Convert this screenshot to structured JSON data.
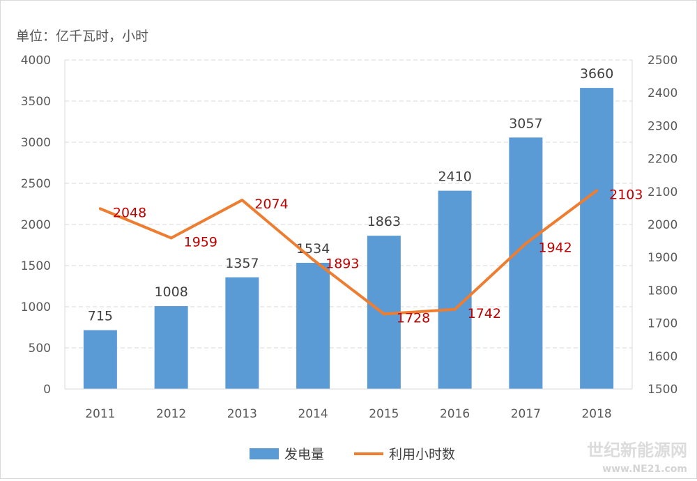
{
  "unit_label": "单位：亿千瓦时，小时",
  "watermark": {
    "title": "世纪新能源网",
    "url": "www.NE21.com"
  },
  "colors": {
    "bar": "#5b9bd5",
    "line": "#ed7d31",
    "line_label": "#c00000",
    "axis_text": "#595959",
    "grid": "#d9d9d9"
  },
  "chart_data": {
    "type": "bar",
    "categories": [
      "2011",
      "2012",
      "2013",
      "2014",
      "2015",
      "2016",
      "2017",
      "2018"
    ],
    "series": [
      {
        "name": "发电量",
        "type": "bar",
        "axis": "left",
        "values": [
          715,
          1008,
          1357,
          1534,
          1863,
          2410,
          3057,
          3660
        ]
      },
      {
        "name": "利用小时数",
        "type": "line",
        "axis": "right",
        "values": [
          2048,
          1959,
          2074,
          1893,
          1728,
          1742,
          1942,
          2103
        ]
      }
    ],
    "ylim_left": [
      0,
      4000
    ],
    "yticks_left": [
      "0",
      "500",
      "1000",
      "1500",
      "2000",
      "2500",
      "3000",
      "3500",
      "4000"
    ],
    "ylim_right": [
      1500,
      2500
    ],
    "yticks_right": [
      "1500",
      "1600",
      "1700",
      "1800",
      "1900",
      "2000",
      "2100",
      "2200",
      "2300",
      "2400",
      "2500"
    ],
    "grid": true,
    "legend": "bottom-center"
  }
}
